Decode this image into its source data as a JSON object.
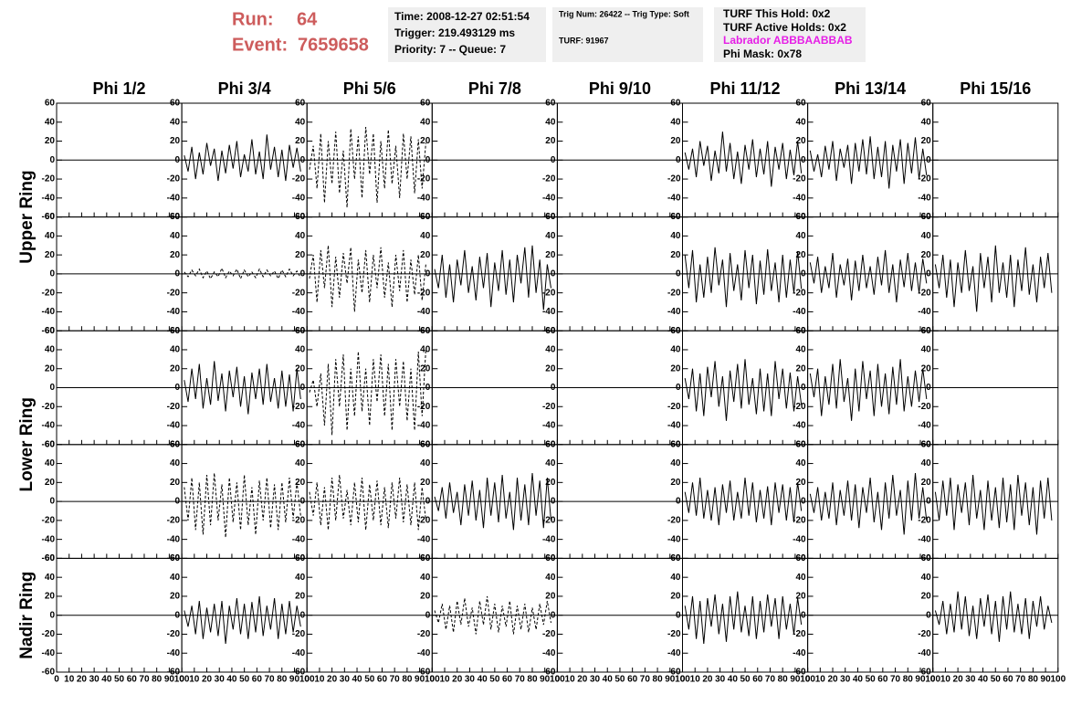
{
  "header": {
    "run_label": "Run:",
    "run": 64,
    "event_label": "Event:",
    "event": 7659658,
    "info": [
      [
        "Time: 2008-12-27 02:51:54",
        "Trigger: 219.493129 ms",
        "Priority: 7 -- Queue: 7"
      ],
      [
        "Trig Num: 26422 -- Trig Type: Soft",
        "TURF: 91967"
      ],
      [
        "TURF This Hold: 0x2",
        "TURF Active Holds: 0x2",
        "Labrador ABBBAABBAB",
        "Phi Mask: 0x78"
      ]
    ]
  },
  "chart_data": {
    "type": "line",
    "columns": [
      "Phi 1/2",
      "Phi 3/4",
      "Phi 5/6",
      "Phi 7/8",
      "Phi 9/10",
      "Phi 11/12",
      "Phi 13/14",
      "Phi 15/16"
    ],
    "rings": [
      "Upper Ring",
      "Lower Ring",
      "Nadir Ring"
    ],
    "xlim": [
      0,
      100
    ],
    "xticks": [
      0,
      10,
      20,
      30,
      40,
      50,
      60,
      70,
      80,
      90,
      100
    ],
    "ylim": [
      -60,
      60
    ],
    "yticks": [
      -60,
      -40,
      -20,
      0,
      20,
      40,
      60
    ],
    "color": "#000000",
    "x": [
      2,
      5,
      8,
      11,
      14,
      17,
      20,
      23,
      26,
      29,
      32,
      35,
      38,
      41,
      44,
      47,
      50,
      53,
      56,
      59,
      62,
      65,
      68,
      71,
      74,
      77,
      80,
      83,
      86,
      89,
      92,
      95
    ],
    "panels": [
      [
        null,
        {
          "style": "solid",
          "values": [
            5,
            -12,
            14,
            -20,
            8,
            -15,
            18,
            -6,
            12,
            -22,
            10,
            -14,
            16,
            -9,
            20,
            -18,
            6,
            -12,
            22,
            -15,
            9,
            -20,
            27,
            -10,
            14,
            -18,
            11,
            -22,
            16,
            -8,
            13,
            -12
          ]
        },
        {
          "style": "dashed",
          "values": [
            -10,
            15,
            -30,
            28,
            -45,
            20,
            -25,
            30,
            -35,
            10,
            -50,
            33,
            -20,
            25,
            -40,
            35,
            -15,
            28,
            -45,
            20,
            -30,
            32,
            -25,
            15,
            -40,
            28,
            -20,
            25,
            -35,
            22,
            -30,
            18
          ]
        },
        null,
        null,
        {
          "style": "solid",
          "values": [
            8,
            -10,
            12,
            -18,
            20,
            -6,
            15,
            -22,
            10,
            -14,
            30,
            -12,
            18,
            -20,
            9,
            -25,
            16,
            -10,
            22,
            -18,
            12,
            -15,
            20,
            -28,
            14,
            -10,
            18,
            -20,
            11,
            -16,
            20,
            -14
          ]
        },
        {
          "style": "solid",
          "values": [
            10,
            -12,
            6,
            -18,
            15,
            -10,
            20,
            -22,
            12,
            -8,
            16,
            -25,
            18,
            -12,
            22,
            -15,
            25,
            -20,
            14,
            -18,
            20,
            -30,
            16,
            -12,
            22,
            -25,
            18,
            -14,
            24,
            -20,
            12,
            -16
          ]
        },
        null
      ],
      [
        null,
        {
          "style": "dashed",
          "values": [
            2,
            -3,
            4,
            -2,
            5,
            -4,
            3,
            -5,
            2,
            -3,
            6,
            -4,
            3,
            -2,
            5,
            -5,
            4,
            -3,
            2,
            -4,
            5,
            -3,
            4,
            -2,
            3,
            -5,
            4,
            -3,
            5,
            -2,
            3,
            -4
          ]
        },
        {
          "style": "dashed",
          "values": [
            -5,
            20,
            -30,
            25,
            -15,
            30,
            -35,
            18,
            -25,
            22,
            -10,
            28,
            -40,
            15,
            -20,
            25,
            -30,
            20,
            -15,
            28,
            -25,
            12,
            -35,
            20,
            -18,
            25,
            -30,
            15,
            -22,
            20,
            -28,
            10
          ]
        },
        {
          "style": "solid",
          "values": [
            5,
            -15,
            20,
            -25,
            10,
            -30,
            15,
            -12,
            25,
            -20,
            8,
            -28,
            18,
            -15,
            22,
            -35,
            12,
            -18,
            25,
            -22,
            15,
            -30,
            20,
            -10,
            28,
            -25,
            30,
            -20,
            15,
            -38,
            10,
            -15
          ]
        },
        null,
        {
          "style": "solid",
          "values": [
            20,
            -15,
            25,
            -30,
            10,
            -25,
            18,
            -20,
            28,
            -12,
            15,
            -35,
            22,
            -18,
            10,
            -28,
            25,
            -15,
            20,
            -32,
            14,
            -22,
            26,
            -18,
            12,
            -30,
            20,
            -25,
            15,
            -20,
            24,
            -16
          ]
        },
        {
          "style": "solid",
          "values": [
            12,
            -10,
            18,
            -20,
            8,
            -15,
            22,
            -25,
            10,
            -12,
            16,
            -28,
            14,
            -18,
            20,
            -15,
            8,
            -22,
            18,
            -12,
            25,
            -20,
            10,
            -30,
            15,
            -14,
            22,
            -18,
            12,
            -20,
            16,
            -10
          ]
        },
        {
          "style": "solid",
          "values": [
            10,
            -15,
            20,
            -25,
            15,
            -35,
            12,
            -20,
            25,
            -18,
            8,
            -40,
            22,
            -15,
            18,
            -30,
            30,
            -20,
            12,
            -25,
            20,
            -35,
            15,
            -18,
            28,
            -22,
            10,
            -30,
            18,
            -15,
            22,
            -20
          ]
        }
      ],
      [
        null,
        {
          "style": "solid",
          "values": [
            8,
            -15,
            20,
            -12,
            25,
            -22,
            10,
            -18,
            28,
            -14,
            15,
            -25,
            18,
            -10,
            22,
            -20,
            12,
            -28,
            16,
            -12,
            20,
            -18,
            25,
            -15,
            10,
            -22,
            18,
            -20,
            14,
            -25,
            20,
            -12
          ]
        },
        {
          "style": "dashed",
          "values": [
            -5,
            8,
            -20,
            15,
            -40,
            25,
            -50,
            30,
            -20,
            35,
            -45,
            20,
            -30,
            38,
            -25,
            20,
            -40,
            30,
            -15,
            35,
            -30,
            25,
            -45,
            30,
            -20,
            28,
            -35,
            20,
            -45,
            38,
            -30,
            40
          ]
        },
        null,
        null,
        {
          "style": "solid",
          "values": [
            10,
            -12,
            20,
            -25,
            15,
            -30,
            22,
            -10,
            28,
            -20,
            12,
            -35,
            18,
            -15,
            25,
            -22,
            30,
            -18,
            10,
            -28,
            20,
            -25,
            15,
            -30,
            28,
            -12,
            20,
            -22,
            16,
            -25,
            12,
            -18
          ]
        },
        {
          "style": "solid",
          "values": [
            15,
            -10,
            20,
            -30,
            12,
            -18,
            25,
            -22,
            30,
            -15,
            10,
            -35,
            20,
            -25,
            28,
            -12,
            18,
            -30,
            25,
            -20,
            15,
            -28,
            22,
            -18,
            30,
            -25,
            12,
            -20,
            18,
            -15,
            20,
            -12
          ]
        },
        null
      ],
      [
        null,
        {
          "style": "dashed",
          "values": [
            15,
            -20,
            25,
            -30,
            20,
            -35,
            28,
            -25,
            30,
            -20,
            18,
            -38,
            25,
            -22,
            20,
            -30,
            28,
            -25,
            15,
            -35,
            22,
            -20,
            25,
            -28,
            18,
            -30,
            20,
            -22,
            25,
            -18,
            20,
            -15
          ]
        },
        {
          "style": "dashed",
          "values": [
            10,
            -15,
            20,
            -25,
            15,
            -30,
            25,
            -20,
            28,
            -18,
            12,
            -25,
            20,
            -22,
            25,
            -30,
            18,
            -20,
            22,
            -25,
            15,
            -28,
            20,
            -18,
            25,
            -22,
            18,
            -25,
            20,
            -30,
            15,
            -20
          ]
        },
        {
          "style": "solid",
          "values": [
            5,
            -10,
            15,
            -18,
            20,
            -12,
            10,
            -25,
            18,
            -15,
            22,
            -20,
            12,
            -28,
            25,
            -15,
            20,
            -22,
            28,
            -18,
            10,
            -30,
            25,
            -20,
            18,
            -25,
            30,
            -15,
            22,
            -28,
            25,
            -20
          ]
        },
        null,
        {
          "style": "solid",
          "values": [
            10,
            -12,
            20,
            -15,
            25,
            -18,
            12,
            -20,
            15,
            -25,
            18,
            -12,
            22,
            -20,
            10,
            -18,
            25,
            -15,
            20,
            -22,
            12,
            -18,
            16,
            -25,
            20,
            -12,
            18,
            -20,
            15,
            -22,
            20,
            -10
          ]
        },
        {
          "style": "solid",
          "values": [
            8,
            -12,
            15,
            -20,
            10,
            -18,
            20,
            -25,
            12,
            -15,
            22,
            -20,
            18,
            -28,
            15,
            -12,
            25,
            -22,
            10,
            -30,
            20,
            -18,
            28,
            -15,
            12,
            -35,
            22,
            -20,
            30,
            -18,
            15,
            -20
          ]
        },
        {
          "style": "solid",
          "values": [
            10,
            -20,
            22,
            -15,
            25,
            -30,
            18,
            -12,
            20,
            -25,
            28,
            -18,
            12,
            -30,
            22,
            -20,
            15,
            -28,
            25,
            -22,
            18,
            -30,
            28,
            -15,
            20,
            -25,
            15,
            -35,
            22,
            -18,
            25,
            -20
          ]
        }
      ],
      [
        null,
        {
          "style": "solid",
          "values": [
            5,
            -12,
            10,
            -20,
            15,
            -25,
            8,
            -18,
            12,
            -22,
            15,
            -30,
            10,
            -15,
            18,
            -20,
            12,
            -25,
            14,
            -18,
            20,
            -22,
            10,
            -15,
            18,
            -25,
            12,
            -20,
            15,
            -18,
            10,
            -12
          ]
        },
        null,
        {
          "style": "dashed",
          "values": [
            5,
            -8,
            12,
            -15,
            10,
            -18,
            15,
            -10,
            18,
            -12,
            8,
            -20,
            15,
            -10,
            20,
            -15,
            12,
            -18,
            10,
            -12,
            15,
            -20,
            10,
            -15,
            12,
            -18,
            8,
            -15,
            12,
            -10,
            15,
            -8
          ]
        },
        null,
        {
          "style": "solid",
          "values": [
            10,
            -15,
            20,
            -25,
            15,
            -30,
            18,
            -12,
            22,
            -20,
            12,
            -28,
            20,
            -15,
            25,
            -18,
            10,
            -22,
            20,
            -25,
            15,
            -18,
            22,
            -12,
            18,
            -25,
            20,
            -15,
            12,
            -20,
            18,
            -10
          ]
        },
        null,
        {
          "style": "solid",
          "values": [
            5,
            -10,
            15,
            -20,
            12,
            -18,
            25,
            -15,
            20,
            -22,
            10,
            -25,
            18,
            -12,
            22,
            -20,
            15,
            -28,
            20,
            -15,
            25,
            -18,
            12,
            -20,
            18,
            -25,
            15,
            -12,
            20,
            -15,
            10,
            -8
          ]
        }
      ]
    ]
  }
}
